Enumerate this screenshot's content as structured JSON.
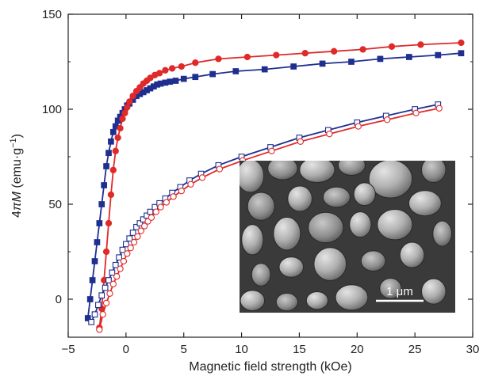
{
  "chart_data": {
    "type": "line",
    "xlabel": "Magnetic field strength (kOe)",
    "ylabel": {
      "prefix": "4",
      "pi": "π",
      "var": "M",
      "unit_pre": " (emu·g",
      "sup": "−1",
      "unit_post": ")"
    },
    "xlim": [
      -5,
      30
    ],
    "ylim": [
      -20,
      150
    ],
    "xticks": [
      -5,
      0,
      5,
      10,
      15,
      20,
      25,
      30
    ],
    "yticks": [
      0,
      50,
      100,
      150
    ],
    "xtick_labels": [
      "−5",
      "0",
      "5",
      "10",
      "15",
      "20",
      "25",
      "30"
    ],
    "ytick_labels": [
      "0",
      "50",
      "100",
      "150"
    ],
    "grid": false,
    "series": [
      {
        "key": "blue_filled",
        "color": "#1f2f8f",
        "marker": "square",
        "filled": true,
        "x": [
          -3.3,
          -3.1,
          -2.9,
          -2.7,
          -2.5,
          -2.3,
          -2.1,
          -1.9,
          -1.7,
          -1.5,
          -1.3,
          -1.1,
          -0.9,
          -0.7,
          -0.5,
          -0.3,
          -0.1,
          0.1,
          0.3,
          0.6,
          0.9,
          1.2,
          1.5,
          1.8,
          2.1,
          2.4,
          2.7,
          3.0,
          3.4,
          3.8,
          4.3,
          5.0,
          6.0,
          7.5,
          9.5,
          12.0,
          14.5,
          17.0,
          19.5,
          22.0,
          24.5,
          27.0,
          29.0
        ],
        "y": [
          -10,
          0,
          10,
          20,
          30,
          40,
          50,
          60,
          70,
          77,
          83,
          88,
          91,
          94,
          96,
          98,
          100,
          102,
          103,
          105,
          107,
          108,
          109,
          110,
          111,
          112,
          113,
          113.5,
          114,
          114.5,
          115,
          116,
          117,
          118.5,
          120,
          121,
          122.5,
          124,
          125,
          126.5,
          127.5,
          128.5,
          129.5
        ]
      },
      {
        "key": "red_filled",
        "color": "#e02a2a",
        "marker": "circle",
        "filled": true,
        "x": [
          -2.3,
          -2.1,
          -1.9,
          -1.7,
          -1.5,
          -1.3,
          -1.1,
          -0.9,
          -0.7,
          -0.5,
          -0.3,
          -0.1,
          0.1,
          0.3,
          0.6,
          0.9,
          1.2,
          1.5,
          1.8,
          2.1,
          2.5,
          2.9,
          3.4,
          4.0,
          4.8,
          6.0,
          8.0,
          10.5,
          13.0,
          15.5,
          18.0,
          20.5,
          23.0,
          25.5,
          29.0
        ],
        "y": [
          -15,
          -5,
          10,
          25,
          40,
          55,
          68,
          78,
          85,
          90,
          95,
          98,
          101,
          104,
          107,
          109.5,
          111.5,
          113.5,
          115,
          116.5,
          118,
          119,
          120.5,
          121.5,
          122.5,
          124.5,
          126.5,
          127.5,
          128.5,
          129.5,
          130.5,
          131.5,
          133,
          134,
          135
        ]
      },
      {
        "key": "blue_open",
        "color": "#1f2f8f",
        "marker": "square",
        "filled": false,
        "x": [
          -3.0,
          -2.7,
          -2.4,
          -2.1,
          -1.8,
          -1.5,
          -1.2,
          -0.9,
          -0.6,
          -0.3,
          0.0,
          0.3,
          0.6,
          0.9,
          1.2,
          1.5,
          1.8,
          2.1,
          2.5,
          2.9,
          3.4,
          4.0,
          4.7,
          5.5,
          6.5,
          8.0,
          10.0,
          12.5,
          15.0,
          17.5,
          20.0,
          22.5,
          25.0,
          27.0
        ],
        "y": [
          -12,
          -8,
          -3,
          2,
          6,
          10,
          14,
          18,
          22,
          26,
          29,
          32,
          35,
          38,
          40,
          42,
          44,
          46,
          48.5,
          50.5,
          53,
          56,
          59,
          62.5,
          66,
          70.5,
          75,
          80,
          85,
          89,
          93,
          96.5,
          100,
          102.5
        ]
      },
      {
        "key": "red_open",
        "color": "#e02a2a",
        "marker": "circle",
        "filled": false,
        "x": [
          -2.3,
          -2.0,
          -1.7,
          -1.4,
          -1.1,
          -0.8,
          -0.5,
          -0.2,
          0.1,
          0.4,
          0.7,
          1.0,
          1.3,
          1.6,
          1.9,
          2.2,
          2.6,
          3.0,
          3.5,
          4.1,
          4.8,
          5.6,
          6.6,
          8.1,
          10.1,
          12.6,
          15.1,
          17.6,
          20.1,
          22.6,
          25.1,
          27.1
        ],
        "y": [
          -16,
          -8,
          -2,
          3,
          8,
          12,
          16,
          20,
          24,
          27,
          30,
          33,
          36,
          38.5,
          41,
          43,
          46,
          48.5,
          51,
          54,
          57,
          60.5,
          64,
          68.5,
          73,
          78,
          83,
          87,
          91,
          94.5,
          98,
          100.5
        ]
      }
    ],
    "inset": {
      "type": "SEM micrograph",
      "scale_bar_label": "1 μm"
    }
  }
}
